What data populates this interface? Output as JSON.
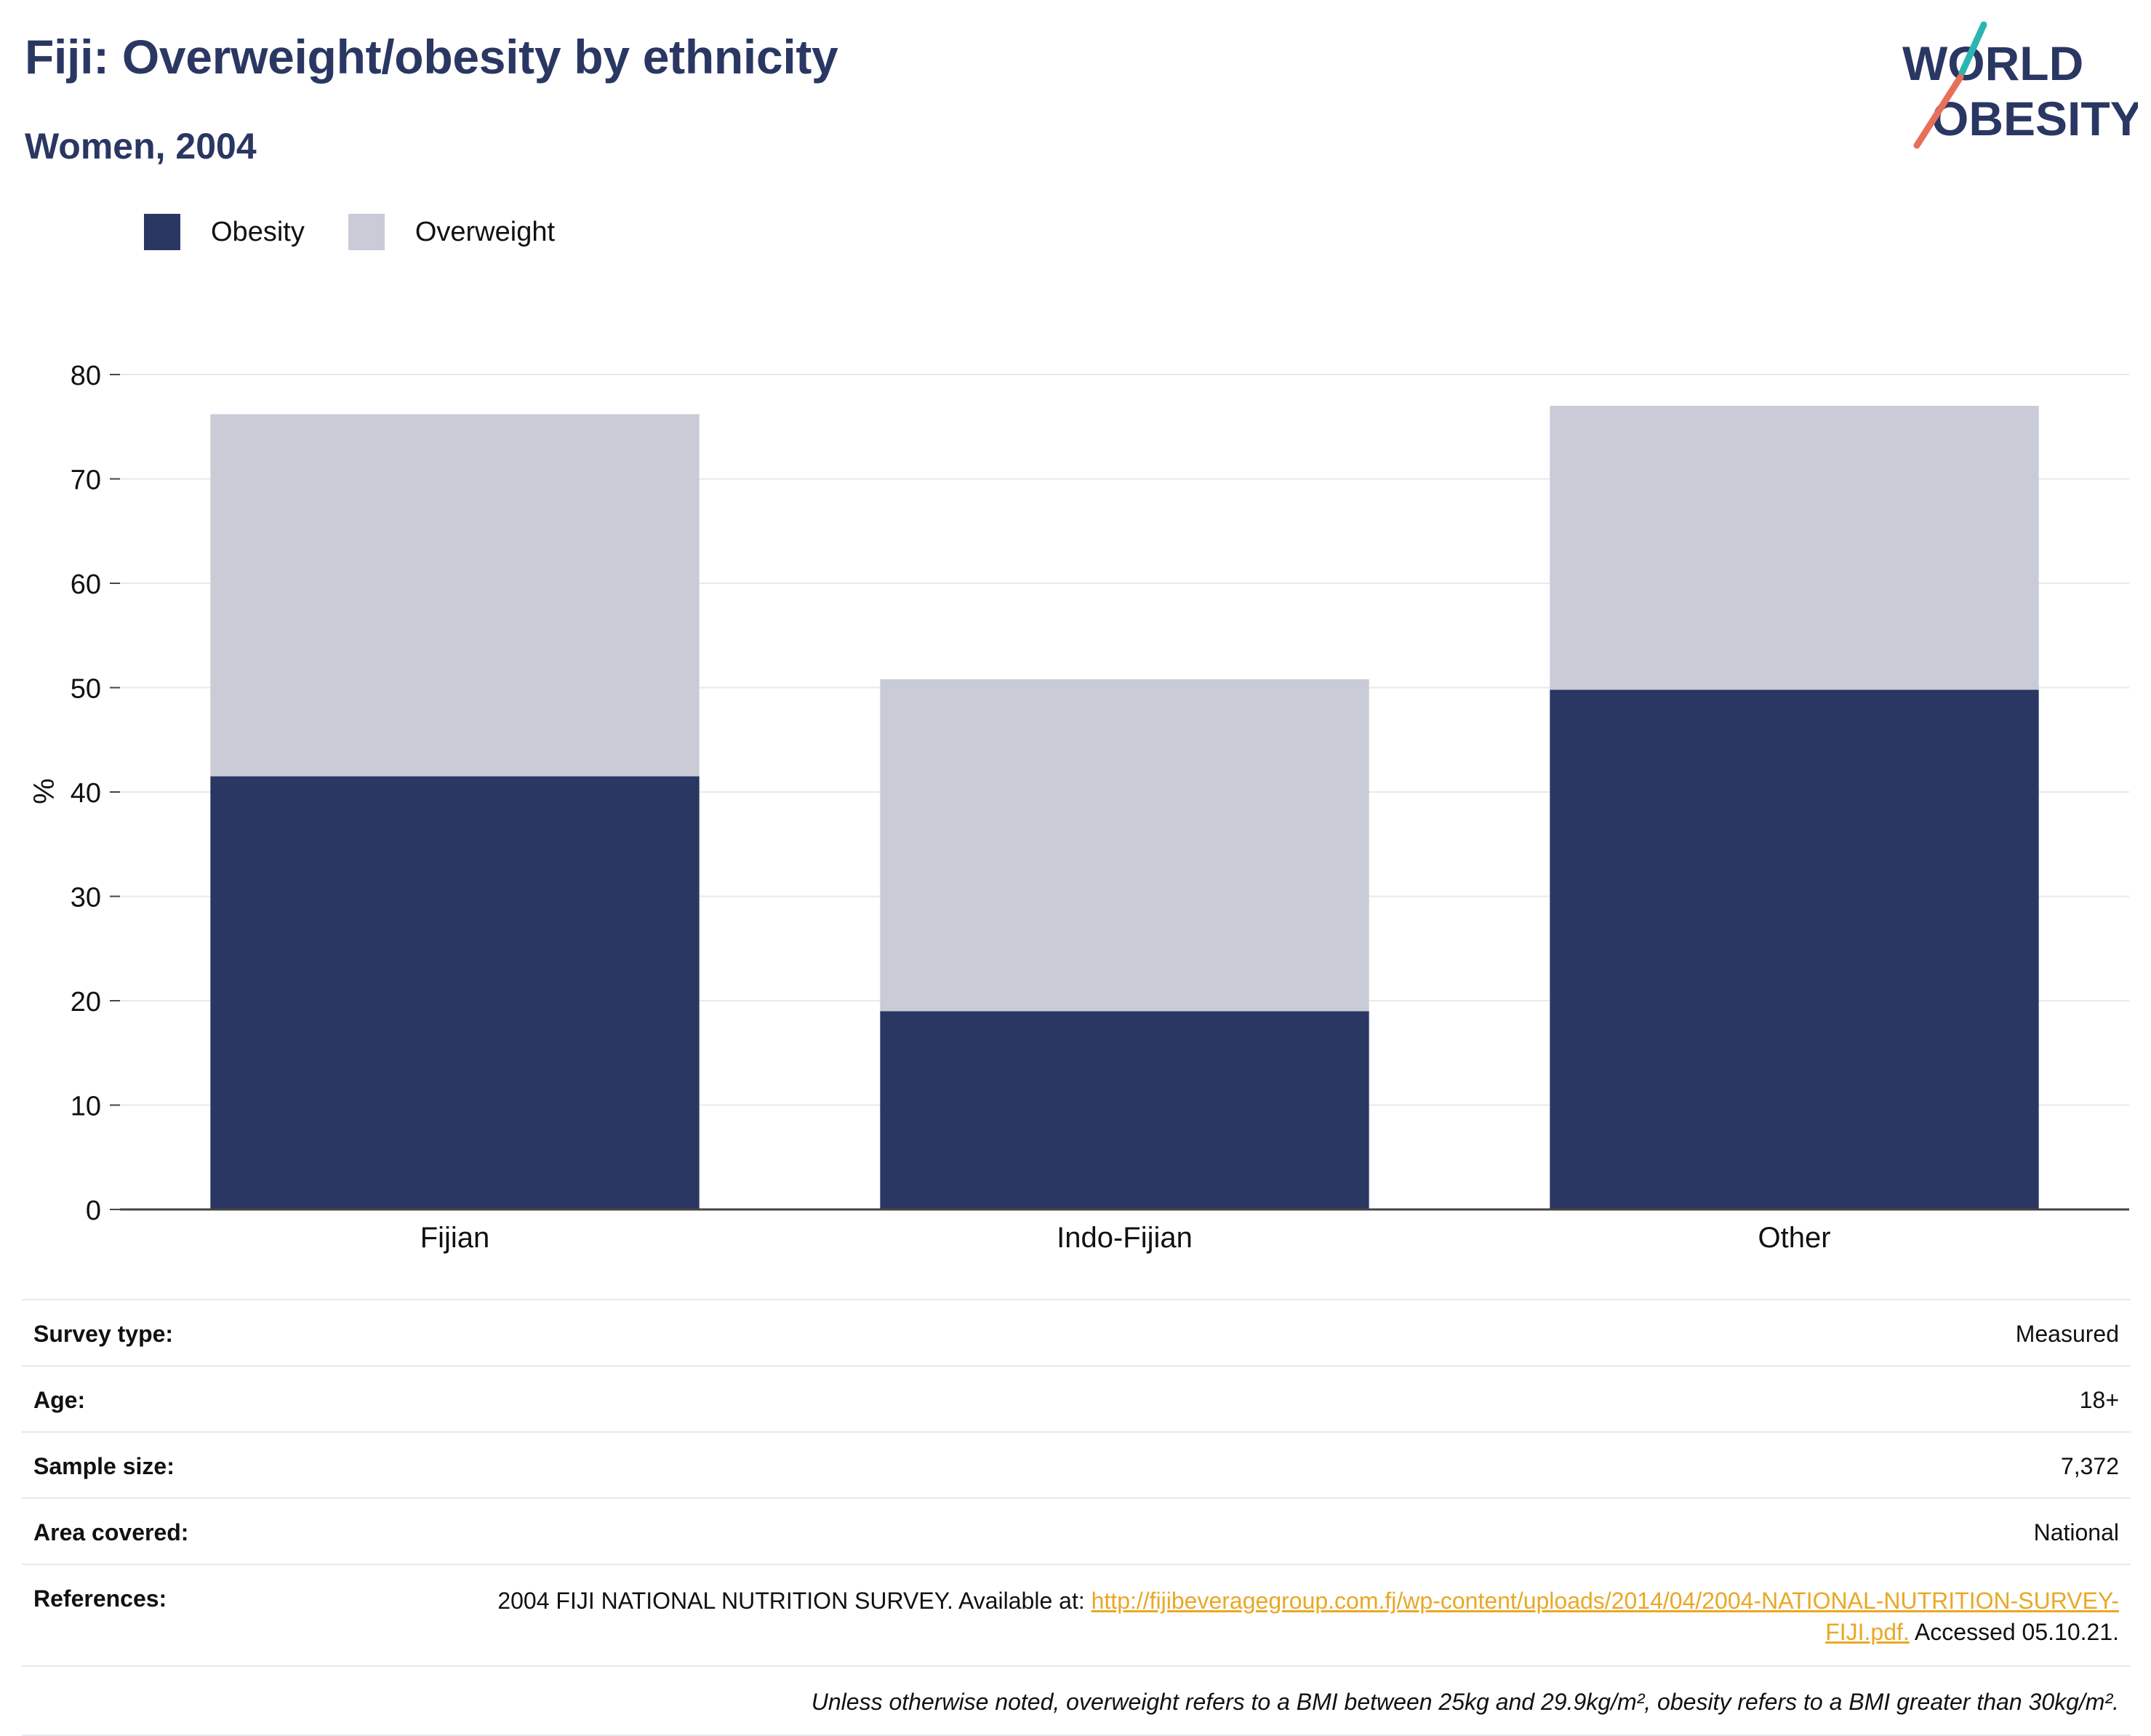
{
  "header": {
    "title": "Fiji: Overweight/obesity by ethnicity",
    "subtitle": "Women, 2004"
  },
  "logo": {
    "line1": "WORLD",
    "line2": "OBESITY",
    "colors": {
      "text": "#2a3763",
      "slash_top": "#2bb5b0",
      "slash_bottom": "#e8705a"
    }
  },
  "legend": {
    "placement": "top-left",
    "items": [
      {
        "label": "Obesity",
        "color": "#2a3763"
      },
      {
        "label": "Overweight",
        "color": "#c9cbd7"
      }
    ]
  },
  "chart_data": {
    "type": "bar",
    "stacked": true,
    "categories": [
      "Fijian",
      "Indo-Fijian",
      "Other"
    ],
    "series": [
      {
        "name": "Obesity",
        "values": [
          41.5,
          19.0,
          49.8
        ],
        "color": "#2a3763"
      },
      {
        "name": "Overweight",
        "values": [
          34.7,
          31.8,
          27.2
        ],
        "color": "#c9cbd7"
      }
    ],
    "ylabel": "%",
    "ylim": [
      0,
      80
    ],
    "yticks": [
      "0",
      "10",
      "20",
      "30",
      "40",
      "50",
      "60",
      "70",
      "80"
    ],
    "grid": true
  },
  "info": {
    "rows": [
      {
        "label": "Survey type:",
        "value": "Measured"
      },
      {
        "label": "Age:",
        "value": "18+"
      },
      {
        "label": "Sample size:",
        "value": "7,372"
      },
      {
        "label": "Area covered:",
        "value": "National"
      }
    ],
    "references": {
      "label": "References:",
      "text_before": "2004 FIJI NATIONAL NUTRITION SURVEY. Available at: ",
      "link": "http://fijibeveragegroup.com.fj/wp-content/uploads/2014/04/2004-NATIONAL-NUTRITION-SURVEY-FIJI.pdf.",
      "text_after": " Accessed 05.10.21."
    },
    "note": "Unless otherwise noted, overweight refers to a BMI between 25kg and 29.9kg/m², obesity refers to a BMI greater than 30kg/m²."
  }
}
